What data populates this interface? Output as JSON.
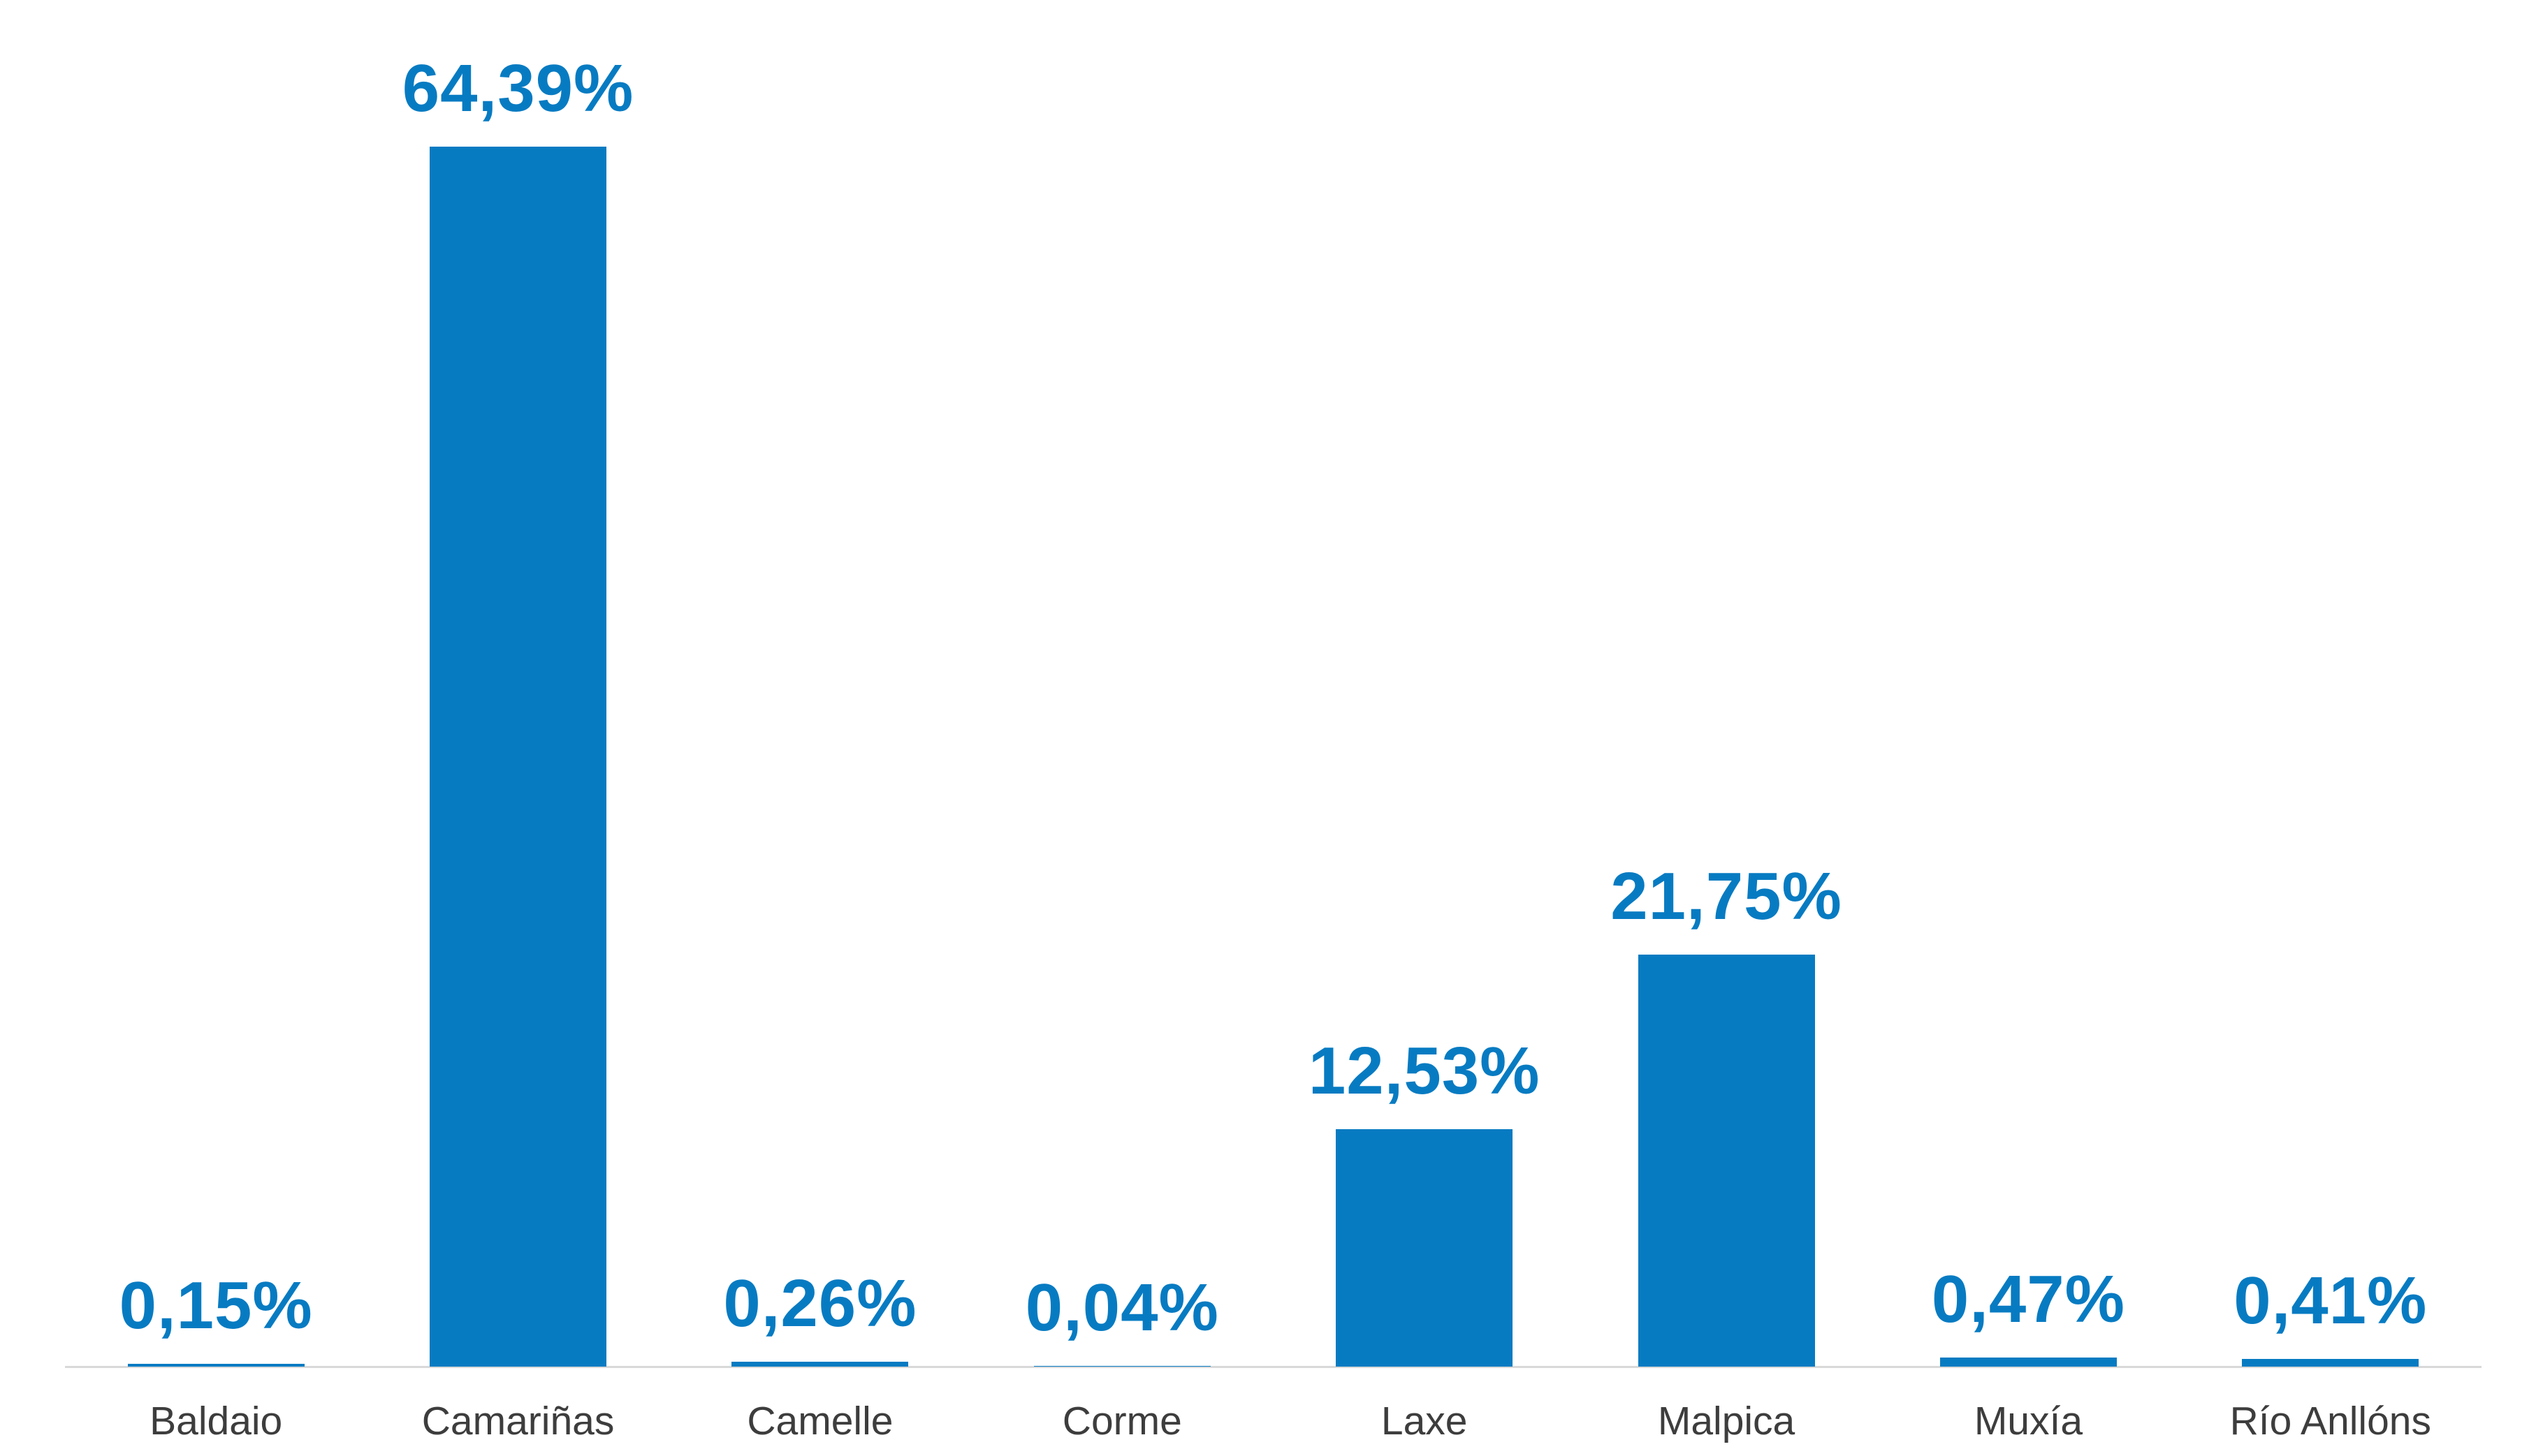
{
  "chart_data": {
    "type": "bar",
    "categories": [
      "Baldaio",
      "Camariñas",
      "Camelle",
      "Corme",
      "Laxe",
      "Malpica",
      "Muxía",
      "Río Anllóns"
    ],
    "values": [
      0.15,
      64.39,
      0.26,
      0.04,
      12.53,
      21.75,
      0.47,
      0.41
    ],
    "value_labels": [
      "0,15%",
      "64,39%",
      "0,26%",
      "0,04%",
      "12,53%",
      "21,75%",
      "0,47%",
      "0,41%"
    ],
    "title": "",
    "xlabel": "",
    "ylabel": "",
    "ylim": [
      0,
      70
    ],
    "grid": false,
    "legend_position": "none",
    "decimal_separator": ",",
    "colors": {
      "bar": "#077bc2",
      "value_label": "#077bc2",
      "category_label": "#3d3d3d",
      "baseline": "#d9d9d9",
      "background": "#ffffff"
    }
  }
}
